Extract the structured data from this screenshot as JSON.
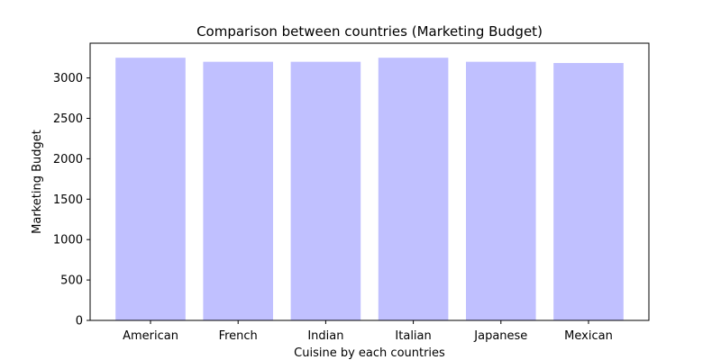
{
  "chart_data": {
    "type": "bar",
    "title": "Comparison between countries (Marketing Budget)",
    "xlabel": "Cuisine by each countries",
    "ylabel": "Marketing Budget",
    "categories": [
      "American",
      "French",
      "Indian",
      "Italian",
      "Japanese",
      "Mexican"
    ],
    "values": [
      3250,
      3200,
      3200,
      3250,
      3200,
      3185
    ],
    "ylim": [
      0,
      3430
    ],
    "yticks": [
      0,
      500,
      1000,
      1500,
      2000,
      2500,
      3000
    ],
    "ytick_labels": [
      "0",
      "500",
      "1000",
      "1500",
      "2000",
      "2500",
      "3000"
    ],
    "grid": false,
    "bar_color": "#c0c0ff"
  }
}
